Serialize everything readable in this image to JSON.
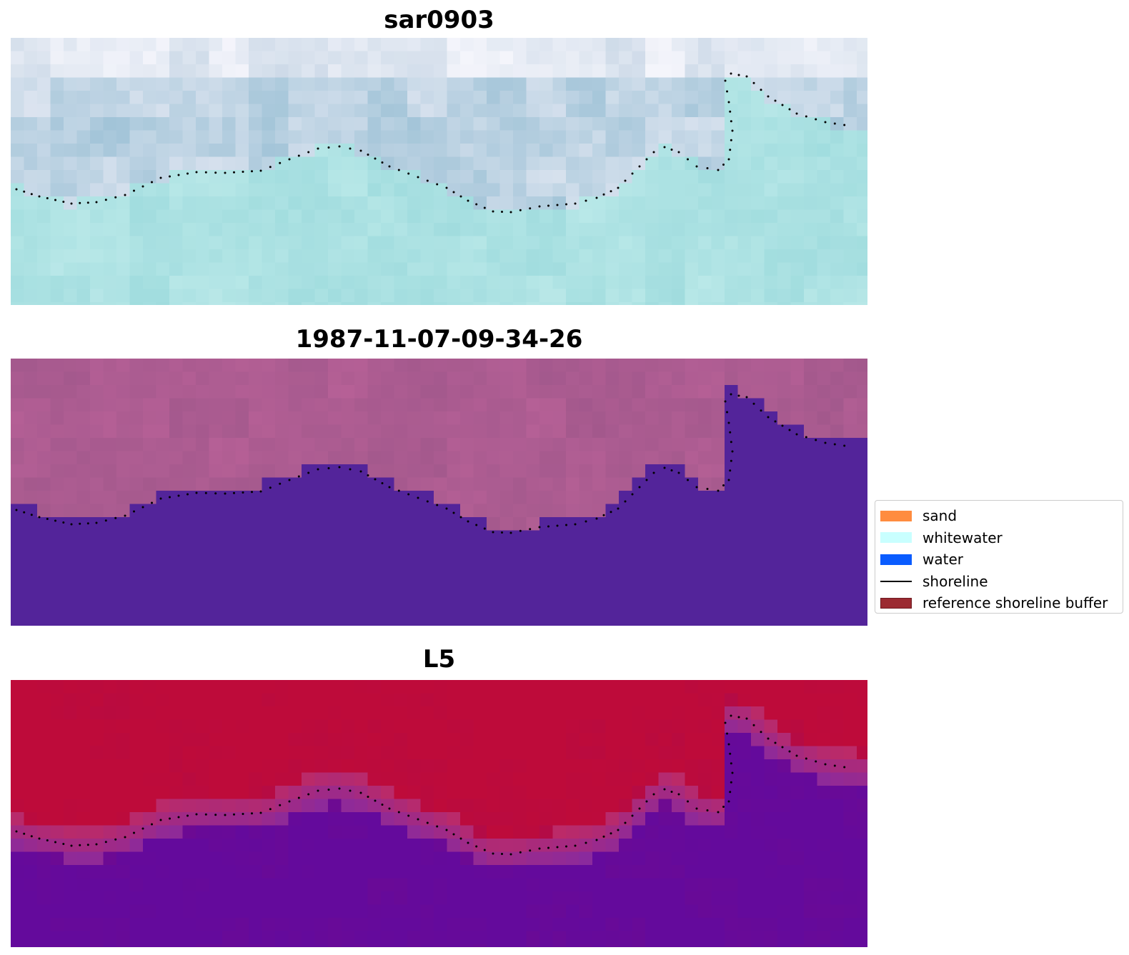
{
  "panels": [
    {
      "title": "sar0903",
      "colormap": "sar"
    },
    {
      "title": "1987-11-07-09-34-26",
      "colormap": "classified"
    },
    {
      "title": "L5",
      "colormap": "index"
    }
  ],
  "legend": {
    "items": [
      {
        "label": "sand",
        "color": "#ff8c3f",
        "kind": "patch"
      },
      {
        "label": "whitewater",
        "color": "#c9ffff",
        "kind": "patch"
      },
      {
        "label": "water",
        "color": "#0a5cff",
        "kind": "patch"
      },
      {
        "label": "shoreline",
        "color": "#000000",
        "kind": "line"
      },
      {
        "label": "reference shoreline buffer",
        "color": "#9b2a31",
        "kind": "patch"
      }
    ]
  },
  "colors": {
    "classified_water": "#53249a",
    "classified_land": "#a85c8e",
    "index_high": "#be0b3a",
    "index_low": "#640a9c",
    "shoreline_dots": "#000000"
  }
}
